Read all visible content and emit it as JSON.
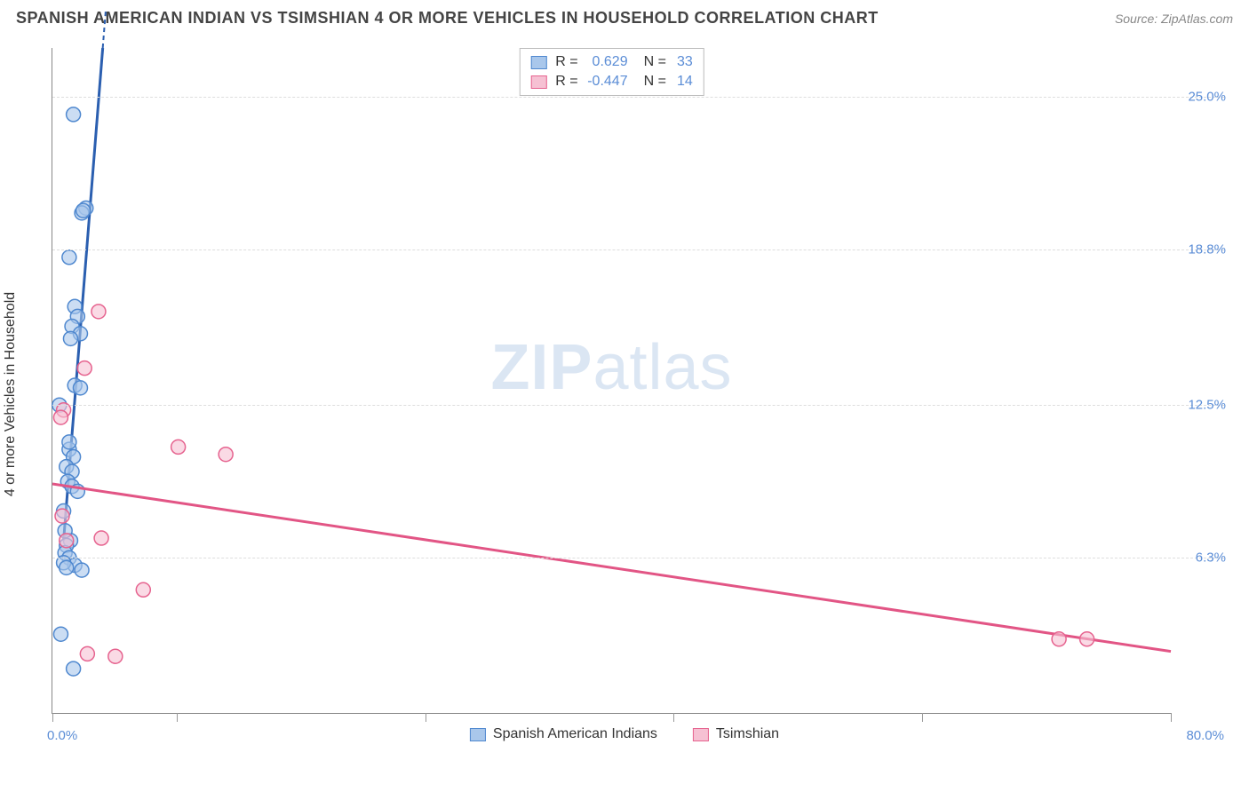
{
  "header": {
    "title": "SPANISH AMERICAN INDIAN VS TSIMSHIAN 4 OR MORE VEHICLES IN HOUSEHOLD CORRELATION CHART",
    "source": "Source: ZipAtlas.com"
  },
  "chart": {
    "type": "scatter",
    "y_axis_label": "4 or more Vehicles in Household",
    "xlim": [
      0,
      80
    ],
    "ylim": [
      0,
      27
    ],
    "x_tick_positions": [
      0,
      8.9,
      26.7,
      44.4,
      62.2,
      80
    ],
    "x_limit_labels": {
      "min": "0.0%",
      "max": "80.0%"
    },
    "y_ticks": [
      {
        "value": 6.3,
        "label": "6.3%"
      },
      {
        "value": 12.5,
        "label": "12.5%"
      },
      {
        "value": 18.8,
        "label": "18.8%"
      },
      {
        "value": 25.0,
        "label": "25.0%"
      }
    ],
    "background_color": "#ffffff",
    "grid_color": "#dddddd",
    "axis_color": "#888888",
    "tick_label_color": "#5b8dd6",
    "marker_radius": 8,
    "marker_stroke_width": 1.5,
    "marker_fill_opacity": 0.25,
    "trendline_width": 3,
    "watermark": "ZIPatlas",
    "watermark_color": "#dbe6f3",
    "series": [
      {
        "name": "Spanish American Indians",
        "color_stroke": "#4f88cf",
        "color_fill": "#a9c7eb",
        "trendline_color": "#2b5fb0",
        "points": [
          {
            "x": 1.5,
            "y": 24.3
          },
          {
            "x": 2.4,
            "y": 20.5
          },
          {
            "x": 2.1,
            "y": 20.3
          },
          {
            "x": 1.2,
            "y": 18.5
          },
          {
            "x": 1.6,
            "y": 16.5
          },
          {
            "x": 1.8,
            "y": 16.1
          },
          {
            "x": 1.4,
            "y": 15.7
          },
          {
            "x": 2.0,
            "y": 15.4
          },
          {
            "x": 1.3,
            "y": 15.2
          },
          {
            "x": 1.6,
            "y": 13.3
          },
          {
            "x": 2.0,
            "y": 13.2
          },
          {
            "x": 0.5,
            "y": 12.5
          },
          {
            "x": 1.2,
            "y": 10.7
          },
          {
            "x": 1.5,
            "y": 10.4
          },
          {
            "x": 1.0,
            "y": 10.0
          },
          {
            "x": 1.4,
            "y": 9.8
          },
          {
            "x": 1.1,
            "y": 9.4
          },
          {
            "x": 1.4,
            "y": 9.2
          },
          {
            "x": 1.8,
            "y": 9.0
          },
          {
            "x": 0.8,
            "y": 8.2
          },
          {
            "x": 1.3,
            "y": 7.0
          },
          {
            "x": 1.0,
            "y": 6.8
          },
          {
            "x": 0.9,
            "y": 6.5
          },
          {
            "x": 1.2,
            "y": 6.3
          },
          {
            "x": 1.6,
            "y": 6.0
          },
          {
            "x": 2.1,
            "y": 5.8
          },
          {
            "x": 0.6,
            "y": 3.2
          },
          {
            "x": 1.5,
            "y": 1.8
          },
          {
            "x": 0.8,
            "y": 6.1
          },
          {
            "x": 1.0,
            "y": 5.9
          },
          {
            "x": 0.9,
            "y": 7.4
          },
          {
            "x": 1.2,
            "y": 11.0
          },
          {
            "x": 2.2,
            "y": 20.4
          }
        ],
        "trendline": {
          "x1": 0.8,
          "y1": 7.0,
          "x2": 3.6,
          "y2": 27.0,
          "dashed_extension": true
        }
      },
      {
        "name": "Tsimshian",
        "color_stroke": "#e6638f",
        "color_fill": "#f6c1d3",
        "trendline_color": "#e25585",
        "points": [
          {
            "x": 3.3,
            "y": 16.3
          },
          {
            "x": 2.3,
            "y": 14.0
          },
          {
            "x": 0.8,
            "y": 12.3
          },
          {
            "x": 0.6,
            "y": 12.0
          },
          {
            "x": 9.0,
            "y": 10.8
          },
          {
            "x": 12.4,
            "y": 10.5
          },
          {
            "x": 3.5,
            "y": 7.1
          },
          {
            "x": 1.0,
            "y": 7.0
          },
          {
            "x": 6.5,
            "y": 5.0
          },
          {
            "x": 2.5,
            "y": 2.4
          },
          {
            "x": 4.5,
            "y": 2.3
          },
          {
            "x": 72.0,
            "y": 3.0
          },
          {
            "x": 74.0,
            "y": 3.0
          },
          {
            "x": 0.7,
            "y": 8.0
          }
        ],
        "trendline": {
          "x1": 0.0,
          "y1": 9.3,
          "x2": 80.0,
          "y2": 2.5,
          "dashed_extension": false
        }
      }
    ],
    "stats_box": {
      "rows": [
        {
          "swatch_fill": "#a9c7eb",
          "swatch_stroke": "#4f88cf",
          "r_label": "R =",
          "r_value": "0.629",
          "n_label": "N =",
          "n_value": "33"
        },
        {
          "swatch_fill": "#f6c1d3",
          "swatch_stroke": "#e6638f",
          "r_label": "R =",
          "r_value": "-0.447",
          "n_label": "N =",
          "n_value": "14"
        }
      ]
    },
    "legend": [
      {
        "swatch_fill": "#a9c7eb",
        "swatch_stroke": "#4f88cf",
        "label": "Spanish American Indians"
      },
      {
        "swatch_fill": "#f6c1d3",
        "swatch_stroke": "#e6638f",
        "label": "Tsimshian"
      }
    ]
  }
}
